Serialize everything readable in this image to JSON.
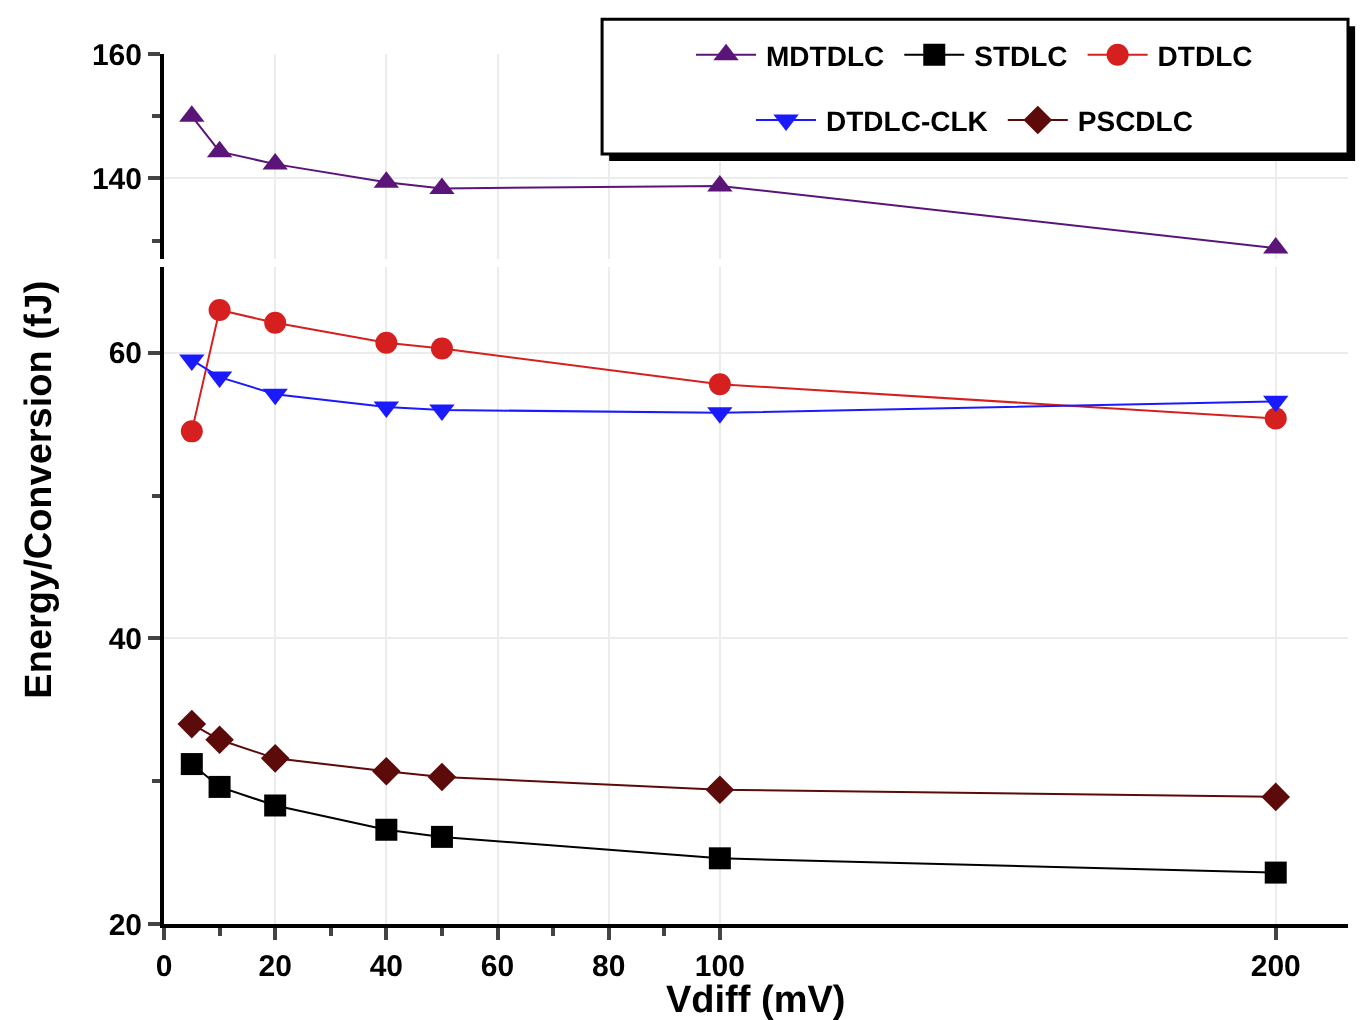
{
  "chart_data": [
    {
      "type": "line",
      "x": [
        5,
        10,
        20,
        40,
        50,
        100,
        200
      ],
      "xlim": [
        0,
        213
      ],
      "ylim": [
        127,
        160
      ],
      "yticks": [
        {
          "value": 130,
          "label": null
        },
        140,
        {
          "value": 150,
          "label": null
        },
        160
      ],
      "xticks": [
        0,
        20,
        40,
        60,
        80,
        100,
        200
      ],
      "tick_labels": "y",
      "grid": true,
      "legend": "top right",
      "series": [
        {
          "name": "MDTDLC",
          "color": "#5b1478",
          "marker": "triangle",
          "values": [
            150.0,
            144.3,
            142.3,
            139.4,
            138.4,
            138.8,
            128.8
          ]
        }
      ]
    },
    {
      "type": "line",
      "x": [
        5,
        10,
        20,
        40,
        50,
        100,
        200
      ],
      "xlim": [
        0,
        213
      ],
      "ylim": [
        20,
        66
      ],
      "xticks": [
        0,
        {
          "value": 10,
          "label": null
        },
        20,
        {
          "value": 30,
          "label": null
        },
        40,
        {
          "value": 50,
          "label": null
        },
        60,
        {
          "value": 70,
          "label": null
        },
        80,
        {
          "value": 90,
          "label": null
        },
        100,
        200
      ],
      "yticks": [
        20,
        {
          "value": 30,
          "label": null
        },
        40,
        {
          "value": 50,
          "label": null
        },
        60
      ],
      "grid": true,
      "legend": "top right",
      "xlabel": "Vdiff (mV)",
      "ylabel": "Energy/Conversion (fJ)",
      "series": [
        {
          "name": "STDLC",
          "color": "#000000",
          "marker": "square",
          "values": [
            31.2,
            29.6,
            28.3,
            26.6,
            26.1,
            24.6,
            23.6
          ]
        },
        {
          "name": "DTDLC",
          "color": "#d62020",
          "marker": "circle",
          "values": [
            54.5,
            63.0,
            62.1,
            60.7,
            60.3,
            57.8,
            55.4
          ]
        },
        {
          "name": "DTDLC-CLK",
          "color": "#1a1aff",
          "marker": "triangle-down",
          "values": [
            59.5,
            58.3,
            57.1,
            56.2,
            56.0,
            55.8,
            56.6
          ]
        },
        {
          "name": "PSCDLC",
          "color": "#5c0a0a",
          "marker": "diamond",
          "values": [
            34.0,
            32.9,
            31.6,
            30.7,
            30.3,
            29.4,
            28.9
          ]
        }
      ]
    }
  ]
}
